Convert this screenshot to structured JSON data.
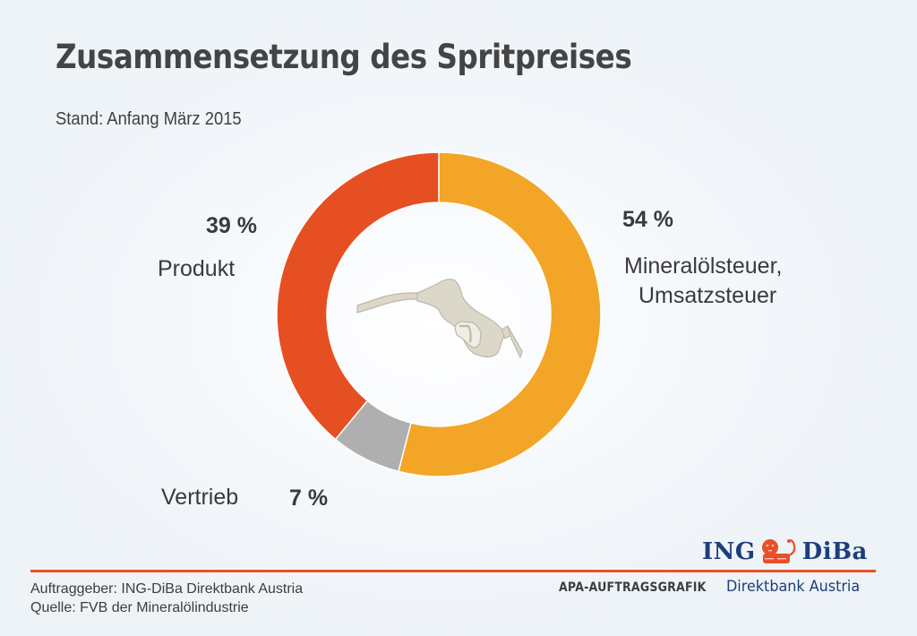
{
  "header": {
    "title": "Zusammensetzung des Spritpreises",
    "subtitle": "Stand: Anfang März 2015"
  },
  "chart_data": {
    "type": "pie",
    "variant": "donut",
    "title": "Zusammensetzung des Spritpreises",
    "subtitle": "Stand: Anfang März 2015",
    "start": "12 o'clock, clockwise",
    "center_icon": "fuel-nozzle-icon",
    "slices": [
      {
        "name": "Mineralölsteuer, Umsatzsteuer",
        "label_lines": [
          "Mineralölsteuer,",
          "Umsatzsteuer"
        ],
        "value": 54,
        "value_label": "54 %",
        "color": "#f3a528"
      },
      {
        "name": "Vertrieb",
        "label_lines": [
          "Vertrieb"
        ],
        "value": 7,
        "value_label": "7 %",
        "color": "#afafaf"
      },
      {
        "name": "Produkt",
        "label_lines": [
          "Produkt"
        ],
        "value": 39,
        "value_label": "39 %",
        "color": "#e54f22"
      }
    ],
    "unit": "%"
  },
  "footer": {
    "client": "Auftraggeber: ING-DiBa Direktbank Austria",
    "source": "Quelle: FVB der Mineralölindustrie",
    "agency_label": "APA-AUFTRAGSGRAFIK",
    "logo_left": "ING",
    "logo_right": "DiBa",
    "logo_icon": "lion-icon",
    "bank_subtitle": "Direktbank Austria",
    "accent_color": "#e8502a",
    "brand_color": "#1c3f7a"
  }
}
